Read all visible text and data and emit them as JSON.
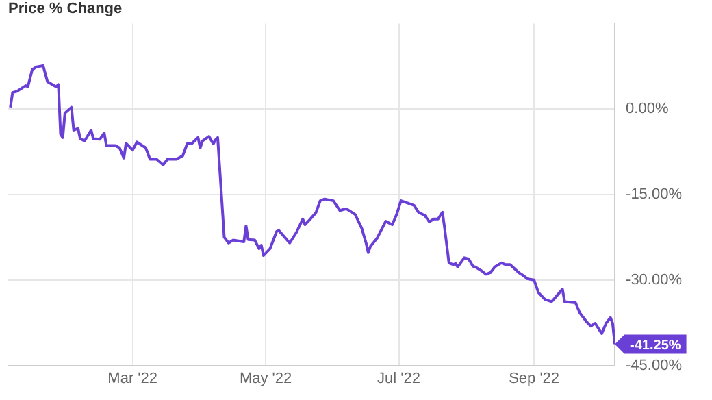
{
  "chart_data": {
    "type": "line",
    "title": "Price % Change",
    "x": [
      "2022-01-04",
      "2022-01-05",
      "2022-01-07",
      "2022-01-11",
      "2022-01-12",
      "2022-01-14",
      "2022-01-16",
      "2022-01-19",
      "2022-01-21",
      "2022-01-25",
      "2022-01-26",
      "2022-01-27",
      "2022-01-28",
      "2022-01-29",
      "2022-02-01",
      "2022-02-02",
      "2022-02-04",
      "2022-02-05",
      "2022-02-07",
      "2022-02-10",
      "2022-02-11",
      "2022-02-14",
      "2022-02-16",
      "2022-02-17",
      "2022-02-21",
      "2022-02-23",
      "2022-02-25",
      "2022-02-26",
      "2022-03-01",
      "2022-03-03",
      "2022-03-07",
      "2022-03-09",
      "2022-03-12",
      "2022-03-15",
      "2022-03-17",
      "2022-03-21",
      "2022-03-24",
      "2022-03-26",
      "2022-03-28",
      "2022-03-31",
      "2022-04-01",
      "2022-04-02",
      "2022-04-05",
      "2022-04-07",
      "2022-04-08",
      "2022-04-09",
      "2022-04-12",
      "2022-04-14",
      "2022-04-16",
      "2022-04-21",
      "2022-04-22",
      "2022-04-23",
      "2022-04-26",
      "2022-04-28",
      "2022-04-29",
      "2022-04-30",
      "2022-05-03",
      "2022-05-06",
      "2022-05-07",
      "2022-05-12",
      "2022-05-15",
      "2022-05-18",
      "2022-05-19",
      "2022-05-21",
      "2022-05-24",
      "2022-05-26",
      "2022-05-28",
      "2022-06-01",
      "2022-06-04",
      "2022-06-07",
      "2022-06-11",
      "2022-06-14",
      "2022-06-16",
      "2022-06-17",
      "2022-06-18",
      "2022-06-21",
      "2022-06-25",
      "2022-06-28",
      "2022-06-30",
      "2022-07-02",
      "2022-07-05",
      "2022-07-08",
      "2022-07-10",
      "2022-07-13",
      "2022-07-15",
      "2022-07-17",
      "2022-07-19",
      "2022-07-21",
      "2022-07-22",
      "2022-07-24",
      "2022-07-26",
      "2022-07-27",
      "2022-07-28",
      "2022-07-31",
      "2022-08-02",
      "2022-08-04",
      "2022-08-05",
      "2022-08-08",
      "2022-08-10",
      "2022-08-12",
      "2022-08-14",
      "2022-08-17",
      "2022-08-19",
      "2022-08-21",
      "2022-08-25",
      "2022-08-27",
      "2022-08-29",
      "2022-09-01",
      "2022-09-03",
      "2022-09-06",
      "2022-09-09",
      "2022-09-10",
      "2022-09-14",
      "2022-09-15",
      "2022-09-20",
      "2022-09-22",
      "2022-09-25",
      "2022-09-27",
      "2022-09-29",
      "2022-10-02",
      "2022-10-04",
      "2022-10-06",
      "2022-10-07",
      "2022-10-08"
    ],
    "series": [
      {
        "color": "#6a3fd6",
        "values": [
          0.3,
          2.9,
          3.1,
          4.1,
          3.9,
          6.9,
          7.4,
          7.6,
          4.8,
          3.9,
          4.3,
          -4.4,
          -5,
          -0.7,
          0.3,
          -3.7,
          -3.4,
          -5.2,
          -5.6,
          -3.7,
          -5.2,
          -5.3,
          -4.2,
          -6.4,
          -6.4,
          -6.8,
          -8.6,
          -6,
          -7.2,
          -5.8,
          -6.8,
          -8.8,
          -8.8,
          -9.8,
          -8.8,
          -8.8,
          -8.2,
          -6.1,
          -6.1,
          -5,
          -6.8,
          -5.6,
          -4.8,
          -6.1,
          -5.4,
          -5,
          -22.5,
          -23.5,
          -23,
          -23.3,
          -20.5,
          -22.9,
          -23,
          -24.5,
          -23.9,
          -25.7,
          -24.5,
          -21.5,
          -21.3,
          -23.5,
          -21.7,
          -19.3,
          -20.3,
          -19.5,
          -18.2,
          -16.1,
          -15.8,
          -16.1,
          -17.8,
          -17.5,
          -18.5,
          -20.9,
          -23.5,
          -25.2,
          -24.1,
          -22.7,
          -19.7,
          -20.3,
          -18.5,
          -16.1,
          -16.5,
          -16.9,
          -18.1,
          -18.7,
          -19.8,
          -19.3,
          -19.3,
          -18.1,
          -20.9,
          -27,
          -27.3,
          -27.1,
          -27.7,
          -26.1,
          -26.3,
          -27.6,
          -27.7,
          -28.4,
          -29,
          -28.7,
          -27.7,
          -27,
          -27.3,
          -27.3,
          -28.7,
          -29.2,
          -29.8,
          -30,
          -32.2,
          -33.4,
          -33.8,
          -33.4,
          -31.6,
          -33.8,
          -34,
          -35.8,
          -37.3,
          -38.1,
          -37.6,
          -39.4,
          -37.6,
          -36.6,
          -37.6,
          -41.25
        ]
      }
    ],
    "xlim": [
      "2022-01-03",
      "2022-10-08"
    ],
    "xticks": [
      {
        "value": "2022-03-01",
        "label": "Mar '22"
      },
      {
        "value": "2022-05-01",
        "label": "May '22"
      },
      {
        "value": "2022-07-01",
        "label": "Jul '22"
      },
      {
        "value": "2022-09-01",
        "label": "Sep '22"
      }
    ],
    "ylim": [
      -45,
      15
    ],
    "yticks": [
      {
        "value": -45,
        "label": "-45.00%"
      },
      {
        "value": -30,
        "label": "-30.00%"
      },
      {
        "value": -15,
        "label": "-15.00%"
      },
      {
        "value": 0,
        "label": "0.00%"
      }
    ],
    "annotations": [
      {
        "text": "-41.25%",
        "x": "2022-10-08",
        "y": -41.25
      }
    ],
    "grid": true,
    "legend": false,
    "marker": "none",
    "line_style": "solid"
  }
}
